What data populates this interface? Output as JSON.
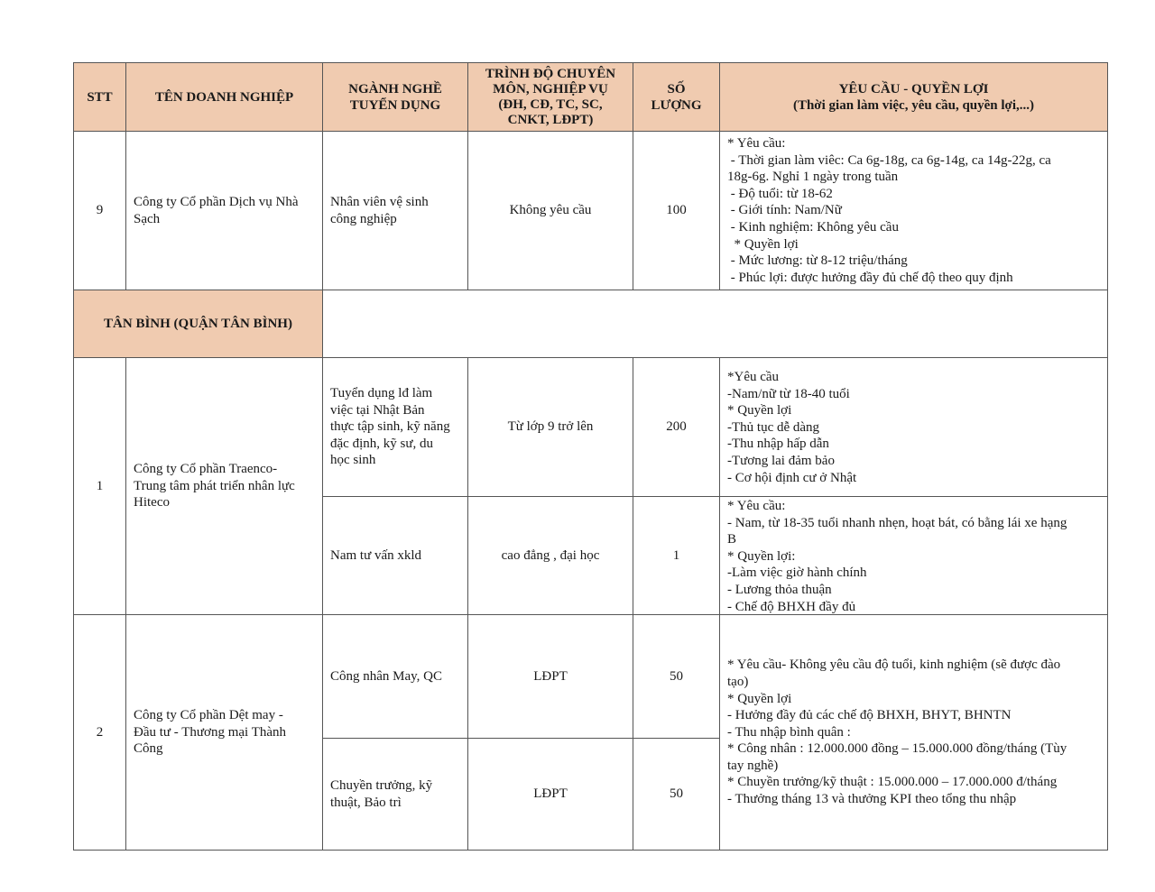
{
  "header": {
    "stt": "STT",
    "company": "TÊN DOANH NGHIỆP",
    "job": "NGÀNH NGHỀ\nTUYỂN DỤNG",
    "qualification": "TRÌNH ĐỘ CHUYÊN\nMÔN, NGHIỆP VỤ\n(ĐH, CĐ, TC, SC,\nCNKT, LĐPT)",
    "quantity": "SỐ\nLƯỢNG",
    "requirements": "YÊU CẦU - QUYỀN LỢI\n(Thời gian làm việc, yêu cầu, quyền lợi,...)"
  },
  "colors": {
    "header_bg": "#f0cbb0",
    "border": "#555555"
  },
  "rows": [
    {
      "stt": "9",
      "company": "Công ty Cổ phần Dịch vụ Nhà\nSạch",
      "jobs": [
        {
          "title": "Nhân viên vệ sinh\ncông nghiệp",
          "qualification": "Không yêu cầu",
          "quantity": "100",
          "requirements": "* Yêu cầu:\n - Thời gian làm viêc: Ca 6g-18g, ca 6g-14g, ca 14g-22g, ca\n18g-6g. Nghỉ 1 ngày trong tuần\n - Độ tuổi: từ 18-62\n - Giới tính: Nam/Nữ\n - Kinh nghiệm: Không yêu cầu\n  * Quyền lợi\n - Mức lương: từ 8-12 triệu/tháng\n - Phúc lợi: được hưởng đầy đủ chế độ theo quy định"
        }
      ]
    }
  ],
  "section": {
    "title": "TÂN BÌNH (QUẬN TÂN BÌNH)"
  },
  "section_rows": [
    {
      "stt": "1",
      "company": "Công ty Cổ phần Traenco-\nTrung tâm phát triển nhân lực\nHiteco",
      "jobs": [
        {
          "title": "Tuyển dụng lđ làm\nviệc tại Nhật Bản\nthực tập sinh, kỹ năng\nđặc định, kỹ sư, du\nhọc sinh",
          "qualification": "Từ lớp 9 trở lên",
          "quantity": "200",
          "requirements": "*Yêu cầu\n-Nam/nữ từ 18-40 tuổi\n* Quyền lợi\n-Thủ tục dễ dàng\n-Thu nhập hấp dẫn\n-Tương lai đảm bảo\n- Cơ hội định cư ở Nhật"
        },
        {
          "title": "Nam tư vấn xkld",
          "qualification": "cao đẳng , đại học",
          "quantity": "1",
          "requirements": "* Yêu cầu:\n- Nam, từ 18-35 tuổi nhanh nhẹn, hoạt bát, có bằng lái xe hạng\nB\n* Quyền lợi:\n-Làm việc giờ hành chính\n- Lương thỏa thuận\n- Chế độ BHXH đầy đủ"
        }
      ]
    },
    {
      "stt": "2",
      "company": "Công ty Cổ phần Dệt may -\nĐầu tư - Thương mại Thành\nCông",
      "jobs": [
        {
          "title": "Công nhân May, QC",
          "qualification": "LĐPT",
          "quantity": "50"
        },
        {
          "title": "Chuyền trưởng, kỹ\nthuật, Bảo trì",
          "qualification": "LĐPT",
          "quantity": "50"
        }
      ],
      "requirements": "* Yêu cầu- Không yêu cầu độ tuổi, kinh nghiệm (sẽ được đào\ntạo)\n* Quyền lợi\n- Hưởng đầy đủ các chế độ BHXH, BHYT, BHNTN\n- Thu nhập bình quân :\n* Công nhân : 12.000.000 đồng – 15.000.000 đồng/tháng (Tùy\ntay nghề)\n* Chuyền trưởng/kỹ thuật : 15.000.000 – 17.000.000 đ/tháng\n- Thưởng tháng 13 và thưởng KPI theo tổng thu nhập"
    }
  ]
}
